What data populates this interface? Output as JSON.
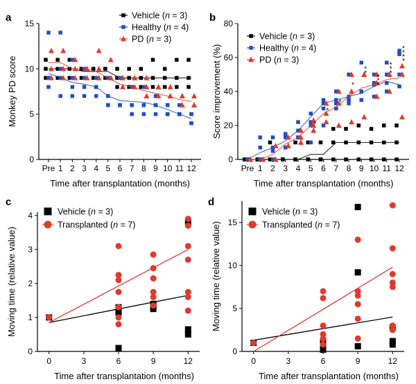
{
  "chart_data": [
    {
      "panel": "a",
      "type": "line",
      "ylabel": "Monkey PD score",
      "xlabel": "Time after transplantation (months)",
      "categories": [
        "Pre",
        "1",
        "2",
        "3",
        "4",
        "5",
        "6",
        "7",
        "8",
        "9",
        "10",
        "11",
        "12"
      ],
      "yticks": [
        "0",
        "5",
        "10",
        "15"
      ],
      "ylim": [
        0,
        15
      ],
      "legend": [
        {
          "label": "Vehicle (n = 3)",
          "color": "#000000",
          "marker": "square"
        },
        {
          "label": "Healthy (n = 4)",
          "color": "#1f4fbf",
          "marker": "square"
        },
        {
          "label": "PD (n = 3)",
          "color": "#e03a2f",
          "marker": "triangle"
        }
      ],
      "series": [
        {
          "name": "Vehicle",
          "color": "#000000",
          "marker": "square",
          "mean": [
            10,
            10,
            10,
            9.7,
            9.7,
            9.7,
            9,
            9,
            9,
            9,
            9,
            9,
            9
          ],
          "points": [
            [
              10,
              9,
              11
            ],
            [
              10,
              9,
              11
            ],
            [
              10,
              9,
              11
            ],
            [
              10,
              9,
              10
            ],
            [
              10,
              9,
              10
            ],
            [
              10,
              9,
              10
            ],
            [
              9,
              8,
              10
            ],
            [
              9,
              8,
              10
            ],
            [
              9,
              8,
              10
            ],
            [
              9,
              8,
              11
            ],
            [
              9,
              8,
              10
            ],
            [
              9,
              8,
              11
            ],
            [
              9,
              8,
              11
            ]
          ]
        },
        {
          "name": "Healthy",
          "color": "#1f4fbf",
          "marker": "square",
          "mean": [
            9.5,
            9.0,
            8.5,
            8.3,
            8,
            7,
            6.5,
            6.4,
            6.3,
            6,
            5.5,
            5,
            4.5
          ],
          "points": [
            [
              9,
              8,
              14,
              9
            ],
            [
              9,
              7,
              14,
              10
            ],
            [
              8,
              7,
              11,
              9
            ],
            [
              8,
              7,
              10,
              9
            ],
            [
              8,
              7,
              9,
              8
            ],
            [
              7,
              6,
              9,
              6
            ],
            [
              6,
              6,
              9,
              6
            ],
            [
              6,
              6,
              8,
              5
            ],
            [
              6,
              6,
              8,
              5
            ],
            [
              6,
              6,
              7,
              5
            ],
            [
              6,
              5,
              6,
              5
            ],
            [
              5,
              5,
              6,
              5
            ],
            [
              5,
              4,
              5,
              4
            ]
          ]
        },
        {
          "name": "PD",
          "color": "#e03a2f",
          "marker": "triangle",
          "mean": [
            10.7,
            10.7,
            10.0,
            10.0,
            9.7,
            9.0,
            8.3,
            8.0,
            7.6,
            7.3,
            7.0,
            6.6,
            6.4
          ],
          "points": [
            [
              12,
              10,
              9
            ],
            [
              12,
              10,
              9
            ],
            [
              10,
              9,
              11
            ],
            [
              10,
              9,
              10
            ],
            [
              12,
              9,
              10
            ],
            [
              11,
              9,
              9
            ],
            [
              9,
              9,
              8
            ],
            [
              9,
              9,
              8
            ],
            [
              9,
              8,
              7
            ],
            [
              8,
              8,
              7
            ],
            [
              7,
              8,
              7
            ],
            [
              7,
              7,
              6
            ],
            [
              6,
              7,
              6
            ]
          ]
        }
      ]
    },
    {
      "panel": "b",
      "type": "line",
      "ylabel": "Score improvement (%)",
      "xlabel": "Time after transplantation (months)",
      "categories": [
        "Pre",
        "1",
        "2",
        "3",
        "4",
        "5",
        "6",
        "7",
        "8",
        "9",
        "10",
        "11",
        "12"
      ],
      "yticks": [
        "0",
        "20",
        "40",
        "60",
        "80"
      ],
      "ylim": [
        0,
        80
      ],
      "legend": [
        {
          "label": "Vehicle (n = 3)",
          "color": "#000000",
          "marker": "square"
        },
        {
          "label": "Healthy (n = 4)",
          "color": "#1f4fbf",
          "marker": "square"
        },
        {
          "label": "PD (n = 3)",
          "color": "#e03a2f",
          "marker": "triangle"
        }
      ],
      "significance": [
        "",
        "",
        "",
        "",
        "",
        "*",
        "*",
        "*",
        "*",
        "**",
        "***",
        "***",
        "****"
      ],
      "series": [
        {
          "name": "Vehicle",
          "color": "#000000",
          "marker": "square",
          "mean": [
            0,
            0,
            0,
            0,
            0,
            3,
            3,
            10,
            10,
            10,
            10,
            10,
            10
          ],
          "points": [
            [
              0,
              0,
              0
            ],
            [
              0,
              0,
              0
            ],
            [
              0,
              10,
              0
            ],
            [
              0,
              0,
              0
            ],
            [
              0,
              0,
              10
            ],
            [
              0,
              10,
              0
            ],
            [
              0,
              10,
              0
            ],
            [
              10,
              18,
              0
            ],
            [
              10,
              18,
              0
            ],
            [
              10,
              20,
              0
            ],
            [
              10,
              18,
              0
            ],
            [
              10,
              20,
              0
            ],
            [
              10,
              20,
              0
            ]
          ]
        },
        {
          "name": "Healthy",
          "color": "#1f4fbf",
          "marker": "square",
          "mean": [
            0,
            4,
            7,
            11,
            17,
            25,
            33,
            35,
            37,
            39,
            43,
            46,
            44
          ],
          "points": [
            [
              0,
              0,
              0,
              0
            ],
            [
              0,
              13,
              7,
              0
            ],
            [
              13,
              7,
              5,
              0
            ],
            [
              15,
              13,
              7,
              7
            ],
            [
              22,
              17,
              13,
              13
            ],
            [
              27,
              22,
              20,
              10
            ],
            [
              33,
              30,
              35,
              20
            ],
            [
              40,
              33,
              35,
              30
            ],
            [
              50,
              37,
              33,
              35
            ],
            [
              57,
              40,
              40,
              35
            ],
            [
              50,
              44,
              45,
              37
            ],
            [
              57,
              45,
              50,
              40
            ],
            [
              64,
              50,
              62,
              43
            ]
          ]
        },
        {
          "name": "PD",
          "color": "#e03a2f",
          "marker": "triangle",
          "mean": [
            0,
            0,
            3,
            9,
            13,
            20,
            27,
            31,
            37,
            42,
            44,
            47,
            48
          ],
          "points": [
            [
              0,
              0,
              0
            ],
            [
              0,
              0,
              0
            ],
            [
              0,
              8,
              0
            ],
            [
              8,
              13,
              8
            ],
            [
              13,
              17,
              10
            ],
            [
              20,
              23,
              17
            ],
            [
              27,
              33,
              22
            ],
            [
              40,
              33,
              20
            ],
            [
              50,
              40,
              22
            ],
            [
              50,
              50,
              25
            ],
            [
              45,
              50,
              37
            ],
            [
              50,
              50,
              40
            ],
            [
              50,
              55,
              25
            ]
          ]
        }
      ]
    },
    {
      "panel": "c",
      "type": "scatter",
      "ylabel": "Moving time (relative value)",
      "xlabel": "Time after transplantation (months)",
      "xticks": [
        "0",
        "3",
        "6",
        "9",
        "12"
      ],
      "yticks": [
        "0",
        "1",
        "2",
        "3",
        "4"
      ],
      "xlim": [
        -1,
        13
      ],
      "ylim": [
        0,
        4.1
      ],
      "legend": [
        {
          "label": "Vehicle (n = 3)",
          "color": "#000000",
          "marker": "square"
        },
        {
          "label": "Transplanted (n = 7)",
          "color": "#e03a2f",
          "marker": "circle"
        }
      ],
      "series": [
        {
          "name": "Vehicle",
          "color": "#000000",
          "marker": "square",
          "points": [
            [
              0,
              1
            ],
            [
              6,
              0.1
            ],
            [
              6,
              1.3
            ],
            [
              6,
              1.15
            ],
            [
              9,
              1.3
            ],
            [
              9,
              1.4
            ],
            [
              9,
              1.25
            ],
            [
              12,
              3.8
            ],
            [
              12,
              0.65
            ],
            [
              12,
              0.5
            ]
          ],
          "fit": [
            [
              0,
              0.85
            ],
            [
              12,
              1.65
            ]
          ]
        },
        {
          "name": "Transplanted",
          "color": "#e03a2f",
          "marker": "circle",
          "points": [
            [
              0,
              1
            ],
            [
              6,
              3.1
            ],
            [
              6,
              2.25
            ],
            [
              6,
              2.1
            ],
            [
              6,
              1.75
            ],
            [
              6,
              1.3
            ],
            [
              6,
              1.0
            ],
            [
              6,
              0.8
            ],
            [
              9,
              2.85
            ],
            [
              9,
              2.45
            ],
            [
              9,
              2.15
            ],
            [
              9,
              1.75
            ],
            [
              9,
              1.6
            ],
            [
              9,
              1.35
            ],
            [
              12,
              3.9
            ],
            [
              12,
              3.7
            ],
            [
              12,
              3.1
            ],
            [
              12,
              2.7
            ],
            [
              12,
              1.75
            ],
            [
              12,
              1.6
            ],
            [
              12,
              1.2
            ]
          ],
          "fit": [
            [
              0,
              0.85
            ],
            [
              12,
              3.0
            ]
          ]
        }
      ]
    },
    {
      "panel": "d",
      "type": "scatter",
      "ylabel": "Moving time (relative value)",
      "xlabel": "Time after transplantation (months)",
      "xticks": [
        "0",
        "3",
        "6",
        "9",
        "12"
      ],
      "yticks": [
        "0",
        "5",
        "10",
        "15"
      ],
      "xlim": [
        -1,
        13
      ],
      "ylim": [
        0,
        17.5
      ],
      "legend": [
        {
          "label": "Vehicle (n = 3)",
          "color": "#000000",
          "marker": "square"
        },
        {
          "label": "Transplanted (n = 7)",
          "color": "#e03a2f",
          "marker": "circle"
        }
      ],
      "series": [
        {
          "name": "Vehicle",
          "color": "#000000",
          "marker": "square",
          "points": [
            [
              0,
              1
            ],
            [
              6,
              0.2
            ],
            [
              6,
              1.2
            ],
            [
              6,
              0.8
            ],
            [
              9,
              16.8
            ],
            [
              9,
              9.2
            ],
            [
              9,
              0.6
            ],
            [
              12,
              2.8
            ],
            [
              12,
              1.2
            ],
            [
              12,
              0.8
            ]
          ],
          "fit": [
            [
              0,
              1.3
            ],
            [
              12,
              4.0
            ]
          ]
        },
        {
          "name": "Transplanted",
          "color": "#e03a2f",
          "marker": "circle",
          "points": [
            [
              0,
              1
            ],
            [
              6,
              7.0
            ],
            [
              6,
              6.2
            ],
            [
              6,
              3.0
            ],
            [
              6,
              2.0
            ],
            [
              6,
              1.5
            ],
            [
              6,
              0.8
            ],
            [
              9,
              13.0
            ],
            [
              9,
              7.0
            ],
            [
              9,
              6.5
            ],
            [
              9,
              5.5
            ],
            [
              9,
              3.8
            ],
            [
              9,
              1.5
            ],
            [
              12,
              17.0
            ],
            [
              12,
              12.0
            ],
            [
              12,
              9.0
            ],
            [
              12,
              8.0
            ],
            [
              12,
              7.5
            ],
            [
              12,
              3.0
            ],
            [
              12,
              2.5
            ]
          ],
          "fit": [
            [
              0,
              0
            ],
            [
              12,
              9.8
            ]
          ]
        }
      ]
    }
  ]
}
